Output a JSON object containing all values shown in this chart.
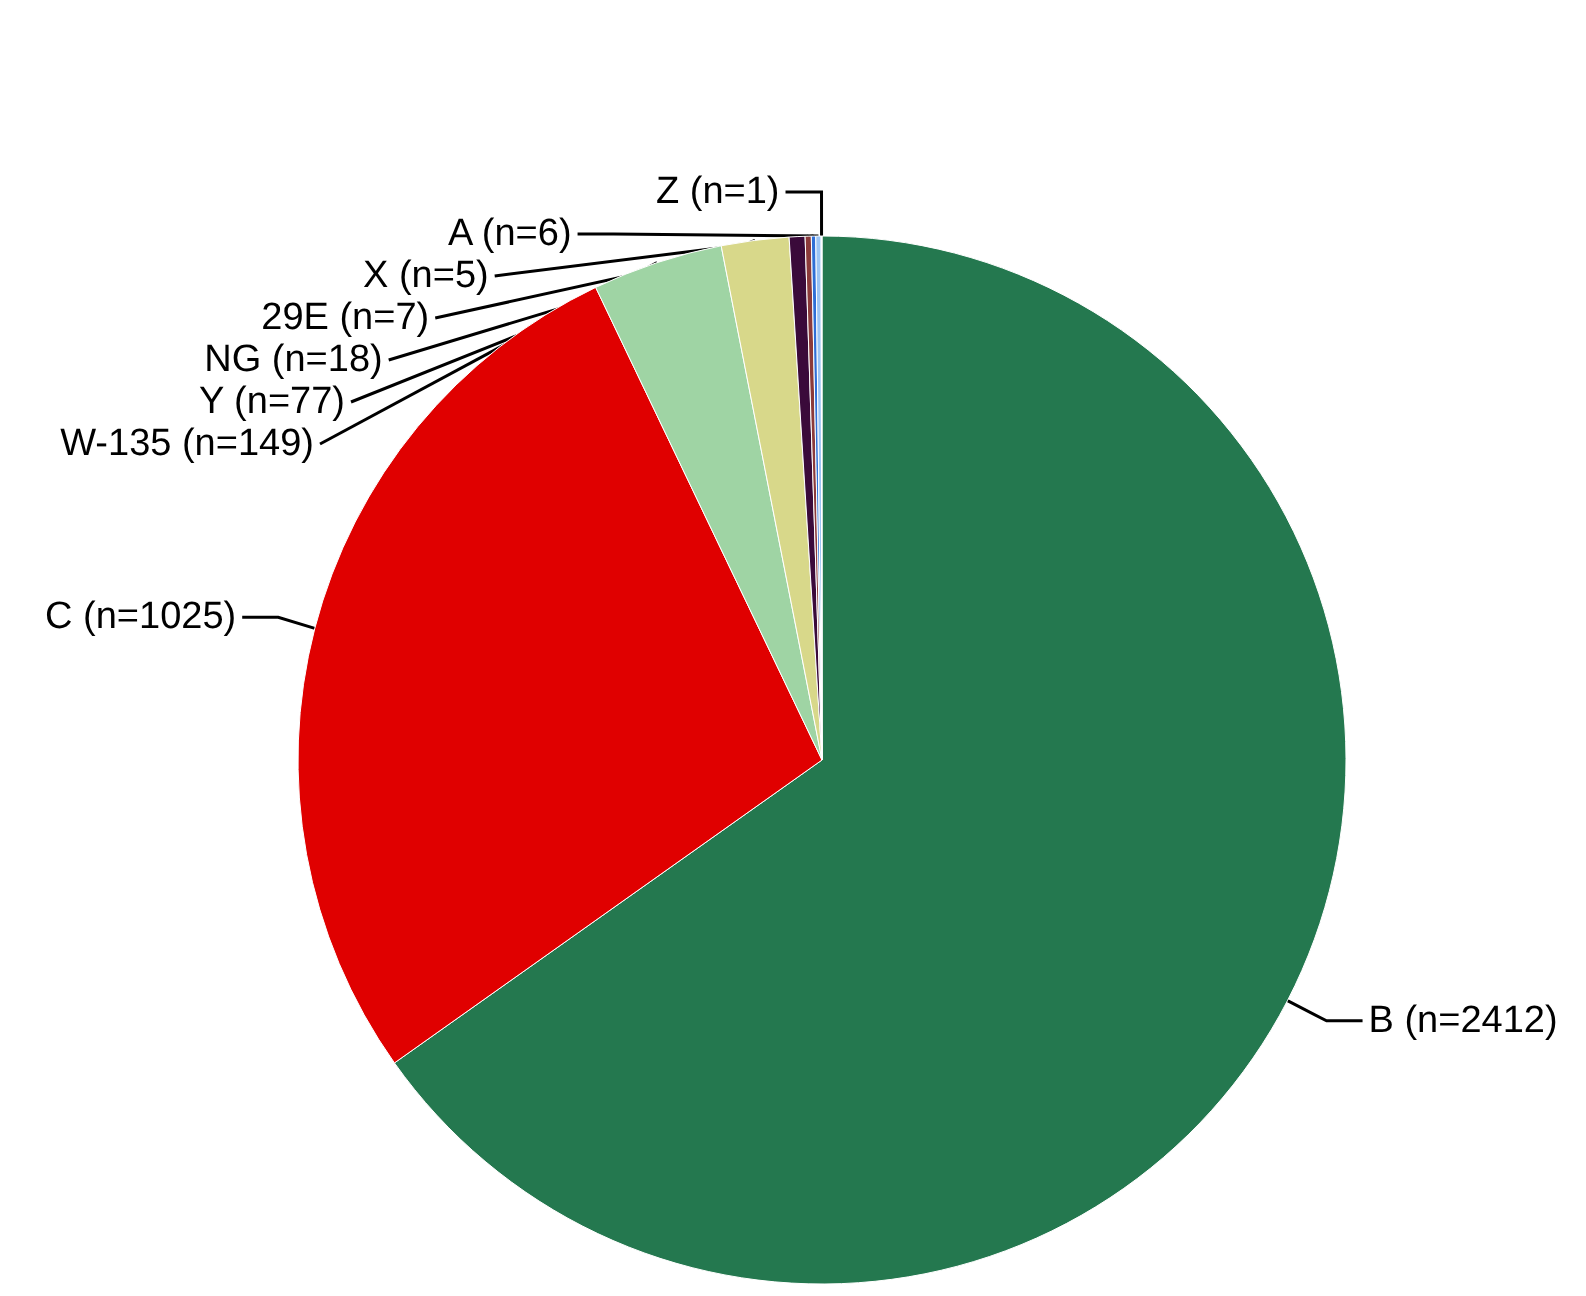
{
  "chart_data": {
    "type": "pie",
    "categories": [
      "B (n=2412)",
      "C (n=1025)",
      "W-135 (n=149)",
      "Y (n=77)",
      "NG (n=18)",
      "29E (n=7)",
      "X (n=5)",
      "A (n=6)",
      "Z (n=1)"
    ],
    "values": [
      2412,
      1025,
      149,
      77,
      18,
      7,
      5,
      6,
      1
    ],
    "colors": [
      "#24784f",
      "#e00000",
      "#9fd4a4",
      "#d8d88a",
      "#3a0a3a",
      "#8b3a3a",
      "#2f6fd6",
      "#9cc4f4",
      "#e8f0ff"
    ],
    "legend": false
  }
}
